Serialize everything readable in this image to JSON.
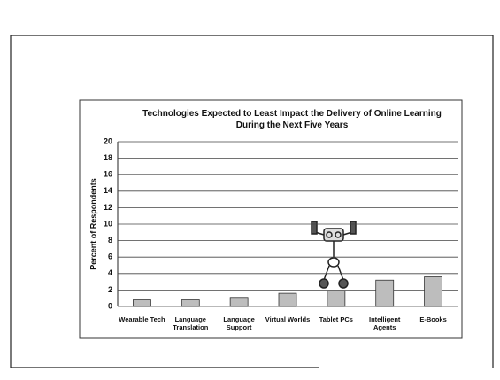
{
  "chart_data": {
    "type": "bar",
    "title": "Technologies Expected to Least Impact the Delivery of Online Learning During the Next Five Years",
    "y_label": "Percent of Respondents",
    "categories": [
      "Wearable Tech",
      "Language Translation",
      "Language Support",
      "Virtual Worlds",
      "Tablet PCs",
      "Intelligent Agents",
      "E-Books"
    ],
    "values": [
      0.8,
      0.8,
      1.1,
      1.6,
      1.9,
      3.2,
      3.6
    ],
    "color": "#bdbdbd",
    "ylim": [
      0,
      20
    ],
    "yticks": [
      0,
      2,
      4,
      6,
      8,
      10,
      12,
      14,
      16,
      18,
      20
    ],
    "grid": true
  }
}
